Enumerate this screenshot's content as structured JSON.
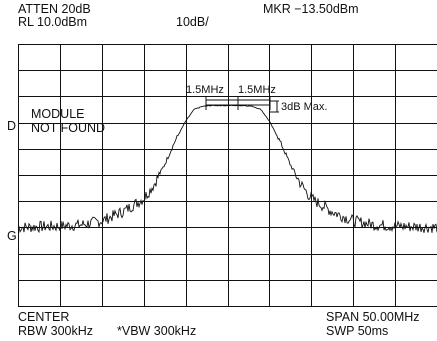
{
  "header": {
    "atten": "ATTEN 20dB",
    "ref_level": "RL 10.0dBm",
    "scale": "10dB/",
    "marker": "MKR −13.50dBm"
  },
  "footer": {
    "center": "CENTER",
    "rbw": "RBW 300kHz",
    "vbw": "*VBW 300kHz",
    "span": "SPAN 50.00MHz",
    "sweep": "SWP 50ms"
  },
  "side_labels": {
    "d_marker": "D",
    "g_marker": "G"
  },
  "message": {
    "line1": "MODULE",
    "line2": "NOT FOUND"
  },
  "annotations": {
    "bw_left": "1.5MHz",
    "bw_right": "1.5MHz",
    "flatness": "3dB Max."
  },
  "chart_data": {
    "type": "line",
    "grid": true,
    "grid_divisions_x": 10,
    "grid_divisions_y": 10,
    "xlim": [
      -25,
      25
    ],
    "ylim": [
      -90,
      10
    ],
    "xlabel": "",
    "ylabel": "",
    "series": [
      {
        "x": [
          -25,
          -20,
          -17.5,
          -15,
          -12.5,
          -10,
          -8.75,
          -7.5,
          -6.25,
          -5,
          -4,
          -3,
          -2,
          0,
          2,
          3,
          4,
          5,
          6.25,
          7.5,
          8.75,
          10,
          12.5,
          15,
          17.5,
          20,
          25
        ],
        "values": [
          -60,
          -59.5,
          -59,
          -57.5,
          -54,
          -49,
          -43.5,
          -36,
          -27,
          -19.5,
          -15,
          -13.8,
          -13.5,
          -13.5,
          -13.5,
          -13.8,
          -15,
          -19.5,
          -27,
          -36,
          -43.5,
          -49,
          -54,
          -57.5,
          -59,
          -59.5,
          -60
        ]
      }
    ]
  }
}
